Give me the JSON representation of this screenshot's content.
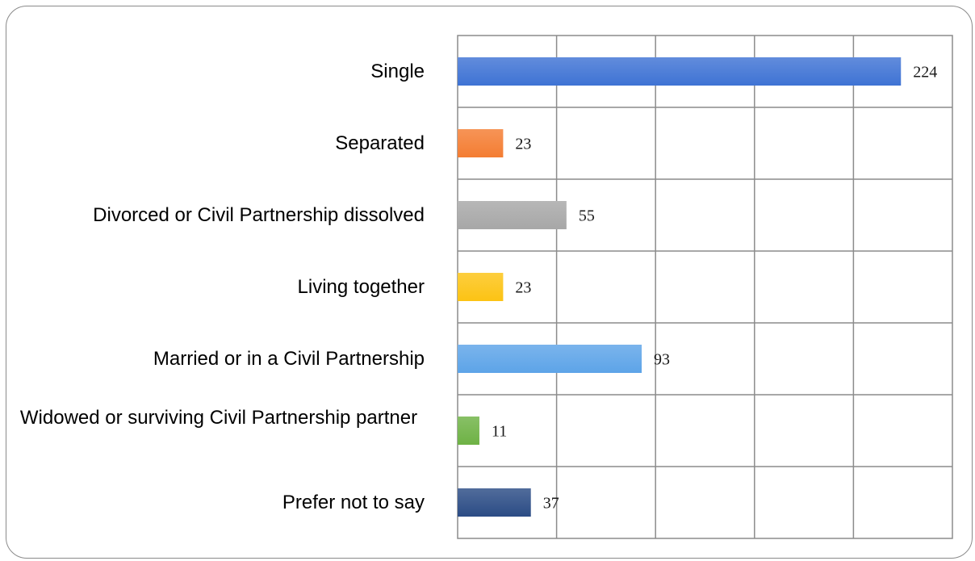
{
  "chart_data": {
    "type": "bar",
    "orientation": "horizontal",
    "categories": [
      "Single",
      "Separated",
      "Divorced or Civil Partnership dissolved",
      "Living together",
      "Married or in a Civil Partnership",
      "Widowed or surviving Civil Partnership partner",
      "Prefer not to say"
    ],
    "values": [
      224,
      23,
      55,
      23,
      93,
      11,
      37
    ],
    "colors": [
      "#3f73d4",
      "#f47d32",
      "#a7a7a7",
      "#fcc314",
      "#5da4e8",
      "#6eb245",
      "#2b4c85"
    ],
    "xlim": [
      0,
      250
    ],
    "grid": true,
    "data_labels": [
      "224",
      "23",
      "55",
      "23",
      "93",
      "11",
      "37"
    ]
  }
}
